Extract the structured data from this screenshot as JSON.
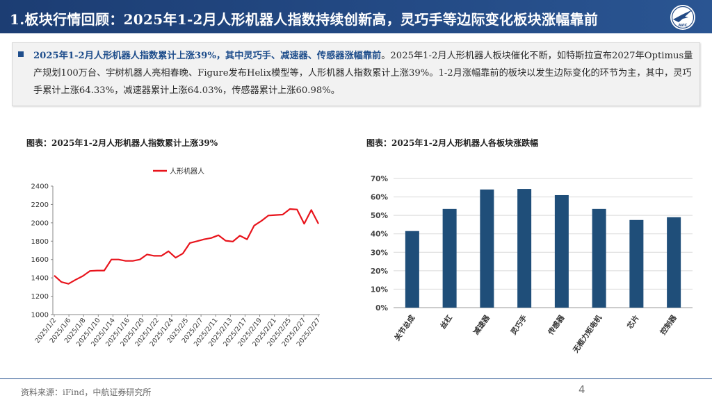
{
  "header": {
    "title": "1.板块行情回顾：2025年1-2月人形机器人指数持续创新高，灵巧手等边际变化板块涨幅靠前",
    "logo_icon": "avic-plane-logo-icon",
    "logo_text": "AVIC",
    "background": "#1f4278"
  },
  "summary": {
    "highlight": "2025年1-2月人形机器人指数累计上涨39%，其中灵巧手、减速器、传感器涨幅靠前",
    "body": "。2025年1-2月人形机器人板块催化不断，如特斯拉宣布2027年Optimus量产规划100万台、宇树机器人亮相春晚、Figure发布Helix模型等，人形机器人指数累计上涨39%。1-2月涨幅靠前的板块以发生边际变化的环节为主，其中，灵巧手累计上涨64.33%，减速器累计上涨64.03%，传感器累计上涨60.98%。"
  },
  "footer": {
    "source": "资料来源：iFind，中航证券研究所",
    "page": "4"
  },
  "chart_data": [
    {
      "type": "line",
      "title": "图表：2025年1-2月人形机器人指数累计上涨39%",
      "legend": "人形机器人",
      "color": "#e8141c",
      "ylim": [
        1000,
        2400
      ],
      "yticks": [
        1000,
        1200,
        1400,
        1600,
        1800,
        2000,
        2200,
        2400
      ],
      "xtick_labels": [
        "2025/1/2",
        "2025/1/6",
        "2025/1/8",
        "2025/1/10",
        "2025/1/14",
        "2025/1/16",
        "2025/1/20",
        "2025/1/22",
        "2025/1/24",
        "2025/2/5",
        "2025/2/7",
        "2025/2/11",
        "2025/2/13",
        "2025/2/17",
        "2025/2/19",
        "2025/2/21",
        "2025/2/25",
        "2025/2/27",
        "2025/2/27"
      ],
      "values": [
        1425,
        1355,
        1335,
        1380,
        1420,
        1475,
        1480,
        1480,
        1600,
        1600,
        1585,
        1585,
        1600,
        1655,
        1640,
        1640,
        1690,
        1620,
        1665,
        1780,
        1800,
        1820,
        1835,
        1865,
        1805,
        1795,
        1860,
        1820,
        1970,
        2020,
        2080,
        2085,
        2090,
        2150,
        2145,
        1990,
        2140,
        1990
      ]
    },
    {
      "type": "bar",
      "title": "图表：2025年1-2月人形机器人各板块涨跌幅",
      "color": "#1f4e79",
      "categories": [
        "关节总成",
        "丝杠",
        "减速器",
        "灵巧手",
        "传感器",
        "无框力矩电机",
        "芯片",
        "控制器"
      ],
      "values": [
        41.5,
        53.5,
        64.03,
        64.33,
        60.98,
        53.5,
        47.5,
        49.0
      ],
      "ylim": [
        0,
        70
      ],
      "yticks": [
        "0%",
        "10%",
        "20%",
        "30%",
        "40%",
        "50%",
        "60%",
        "70%"
      ]
    }
  ]
}
